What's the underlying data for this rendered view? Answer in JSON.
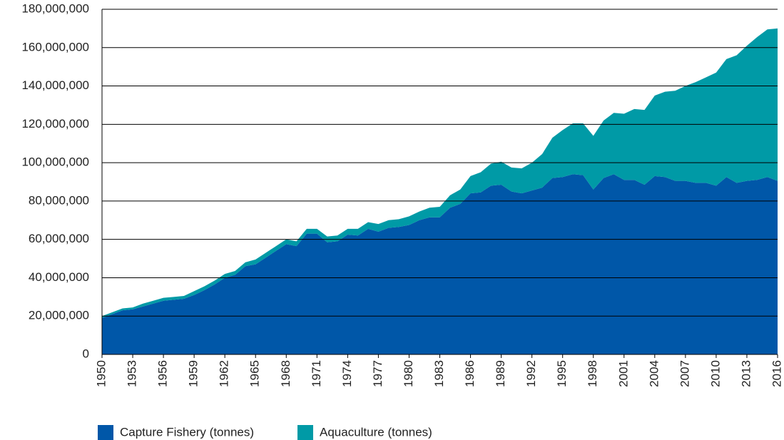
{
  "chart_data": {
    "type": "area",
    "stacked": true,
    "x": [
      1950,
      1951,
      1952,
      1953,
      1954,
      1955,
      1956,
      1957,
      1958,
      1959,
      1960,
      1961,
      1962,
      1963,
      1964,
      1965,
      1966,
      1967,
      1968,
      1969,
      1970,
      1971,
      1972,
      1973,
      1974,
      1975,
      1976,
      1977,
      1978,
      1979,
      1980,
      1981,
      1982,
      1983,
      1984,
      1985,
      1986,
      1987,
      1988,
      1989,
      1990,
      1991,
      1992,
      1993,
      1994,
      1995,
      1996,
      1997,
      1998,
      1999,
      2000,
      2001,
      2002,
      2003,
      2004,
      2005,
      2006,
      2007,
      2008,
      2009,
      2010,
      2011,
      2012,
      2013,
      2014,
      2015,
      2016
    ],
    "series": [
      {
        "name": "Capture Fishery (tonnes)",
        "color": "#0057a8",
        "values": [
          19000000,
          21000000,
          23000000,
          23500000,
          25000000,
          26500000,
          28000000,
          28500000,
          29000000,
          31000000,
          33500000,
          36500000,
          40000000,
          41500000,
          46000000,
          47000000,
          50500000,
          54000000,
          57500000,
          56500000,
          63000000,
          63000000,
          58500000,
          59000000,
          62500000,
          62000000,
          65500000,
          64000000,
          66000000,
          66500000,
          67500000,
          70000000,
          71500000,
          71500000,
          76500000,
          78500000,
          84000000,
          84500000,
          88000000,
          88500000,
          85000000,
          84000000,
          85500000,
          87000000,
          92000000,
          92500000,
          94000000,
          93500000,
          86000000,
          92000000,
          94000000,
          91000000,
          91000000,
          88500000,
          93000000,
          92500000,
          90500000,
          90500000,
          89500000,
          89500000,
          88000000,
          92500000,
          89500000,
          90500000,
          91000000,
          92500000,
          90500000
        ]
      },
      {
        "name": "Aquaculture (tonnes)",
        "color": "#009aa6",
        "values": [
          1000000,
          1000000,
          1000000,
          1000000,
          1500000,
          1500000,
          1500000,
          1500000,
          1500000,
          2000000,
          2000000,
          2000000,
          2000000,
          2000000,
          2000000,
          2500000,
          2500000,
          2500000,
          2500000,
          2500000,
          2500000,
          2500000,
          3000000,
          3000000,
          3000000,
          3500000,
          3500000,
          4000000,
          4000000,
          4000000,
          4500000,
          4500000,
          5000000,
          5500000,
          6500000,
          7500000,
          9000000,
          10500000,
          11500000,
          12000000,
          12500000,
          13000000,
          14500000,
          17500000,
          21000000,
          24500000,
          26500000,
          27000000,
          28000000,
          30000000,
          32000000,
          34500000,
          37000000,
          39000000,
          42000000,
          44500000,
          47000000,
          49500000,
          52500000,
          55000000,
          59000000,
          61500000,
          66500000,
          70500000,
          74500000,
          77000000,
          79500000
        ]
      }
    ],
    "xlim": [
      1950,
      2016
    ],
    "xticks": [
      1950,
      1953,
      1956,
      1959,
      1962,
      1965,
      1968,
      1971,
      1974,
      1977,
      1980,
      1983,
      1986,
      1989,
      1992,
      1995,
      1998,
      2001,
      2004,
      2007,
      2010,
      2013,
      2016
    ],
    "ylim": [
      0,
      180000000
    ],
    "yticks": [
      0,
      {
        "value": 20000000,
        "label": "20,000,000"
      },
      {
        "value": 40000000,
        "label": "40,000,000"
      },
      {
        "value": 60000000,
        "label": "60,000,000"
      },
      {
        "value": 80000000,
        "label": "80,000,000"
      },
      {
        "value": 100000000,
        "label": "100,000,000"
      },
      {
        "value": 120000000,
        "label": "120,000,000"
      },
      {
        "value": 140000000,
        "label": "140,000,000"
      },
      {
        "value": 160000000,
        "label": "160,000,000"
      },
      {
        "value": 180000000,
        "label": "180,000,000"
      }
    ],
    "grid": true,
    "legend": "bottom"
  }
}
